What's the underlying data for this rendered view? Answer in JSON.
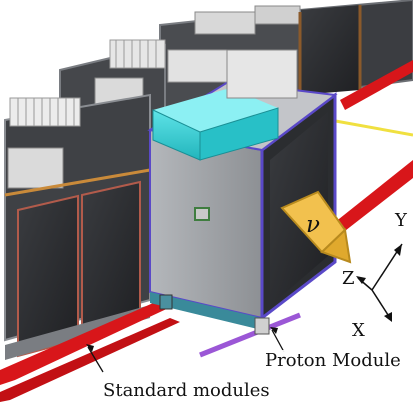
{
  "labels": {
    "standard_modules": "Standard modules",
    "proton_module": "Proton Module",
    "neutrino_symbol": "ν"
  },
  "axes": {
    "x": "X",
    "y": "Y",
    "z": "Z"
  },
  "colors": {
    "rail_red": "#d8161a",
    "module_frame": "#6b6e73",
    "module_panel": "#2c2e31",
    "proton_body": "#9a9da1",
    "proton_top": "#37c9cf",
    "proton_border": "#5a49c8",
    "beam_arrow": "#e6b64a",
    "beam_line": "#f0e040"
  }
}
